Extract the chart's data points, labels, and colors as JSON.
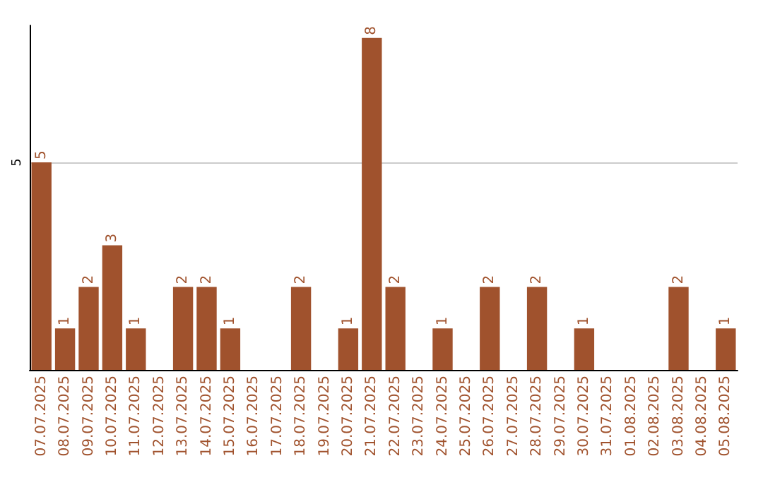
{
  "chart_data": {
    "type": "bar",
    "categories": [
      "07.07.2025",
      "08.07.2025",
      "09.07.2025",
      "10.07.2025",
      "11.07.2025",
      "12.07.2025",
      "13.07.2025",
      "14.07.2025",
      "15.07.2025",
      "16.07.2025",
      "17.07.2025",
      "18.07.2025",
      "19.07.2025",
      "20.07.2025",
      "21.07.2025",
      "22.07.2025",
      "23.07.2025",
      "24.07.2025",
      "25.07.2025",
      "26.07.2025",
      "27.07.2025",
      "28.07.2025",
      "29.07.2025",
      "30.07.2025",
      "31.07.2025",
      "01.08.2025",
      "02.08.2025",
      "03.08.2025",
      "04.08.2025",
      "05.08.2025"
    ],
    "values": [
      5,
      1,
      2,
      3,
      1,
      0,
      2,
      2,
      1,
      0,
      0,
      2,
      0,
      1,
      8,
      2,
      0,
      1,
      0,
      2,
      0,
      2,
      0,
      1,
      0,
      0,
      0,
      2,
      0,
      1
    ],
    "value_labels": [
      "5",
      "1",
      "2",
      "3",
      "1",
      null,
      "2",
      "2",
      "1",
      null,
      null,
      "2",
      null,
      "1",
      "8",
      "2",
      null,
      "1",
      null,
      "2",
      null,
      "2",
      null,
      "1",
      null,
      null,
      null,
      "2",
      null,
      "1"
    ],
    "color": "#a0522d",
    "ylim": [
      0,
      8.3
    ],
    "yticks": [
      {
        "value": 0,
        "label": null
      },
      5
    ],
    "grid": "y"
  }
}
